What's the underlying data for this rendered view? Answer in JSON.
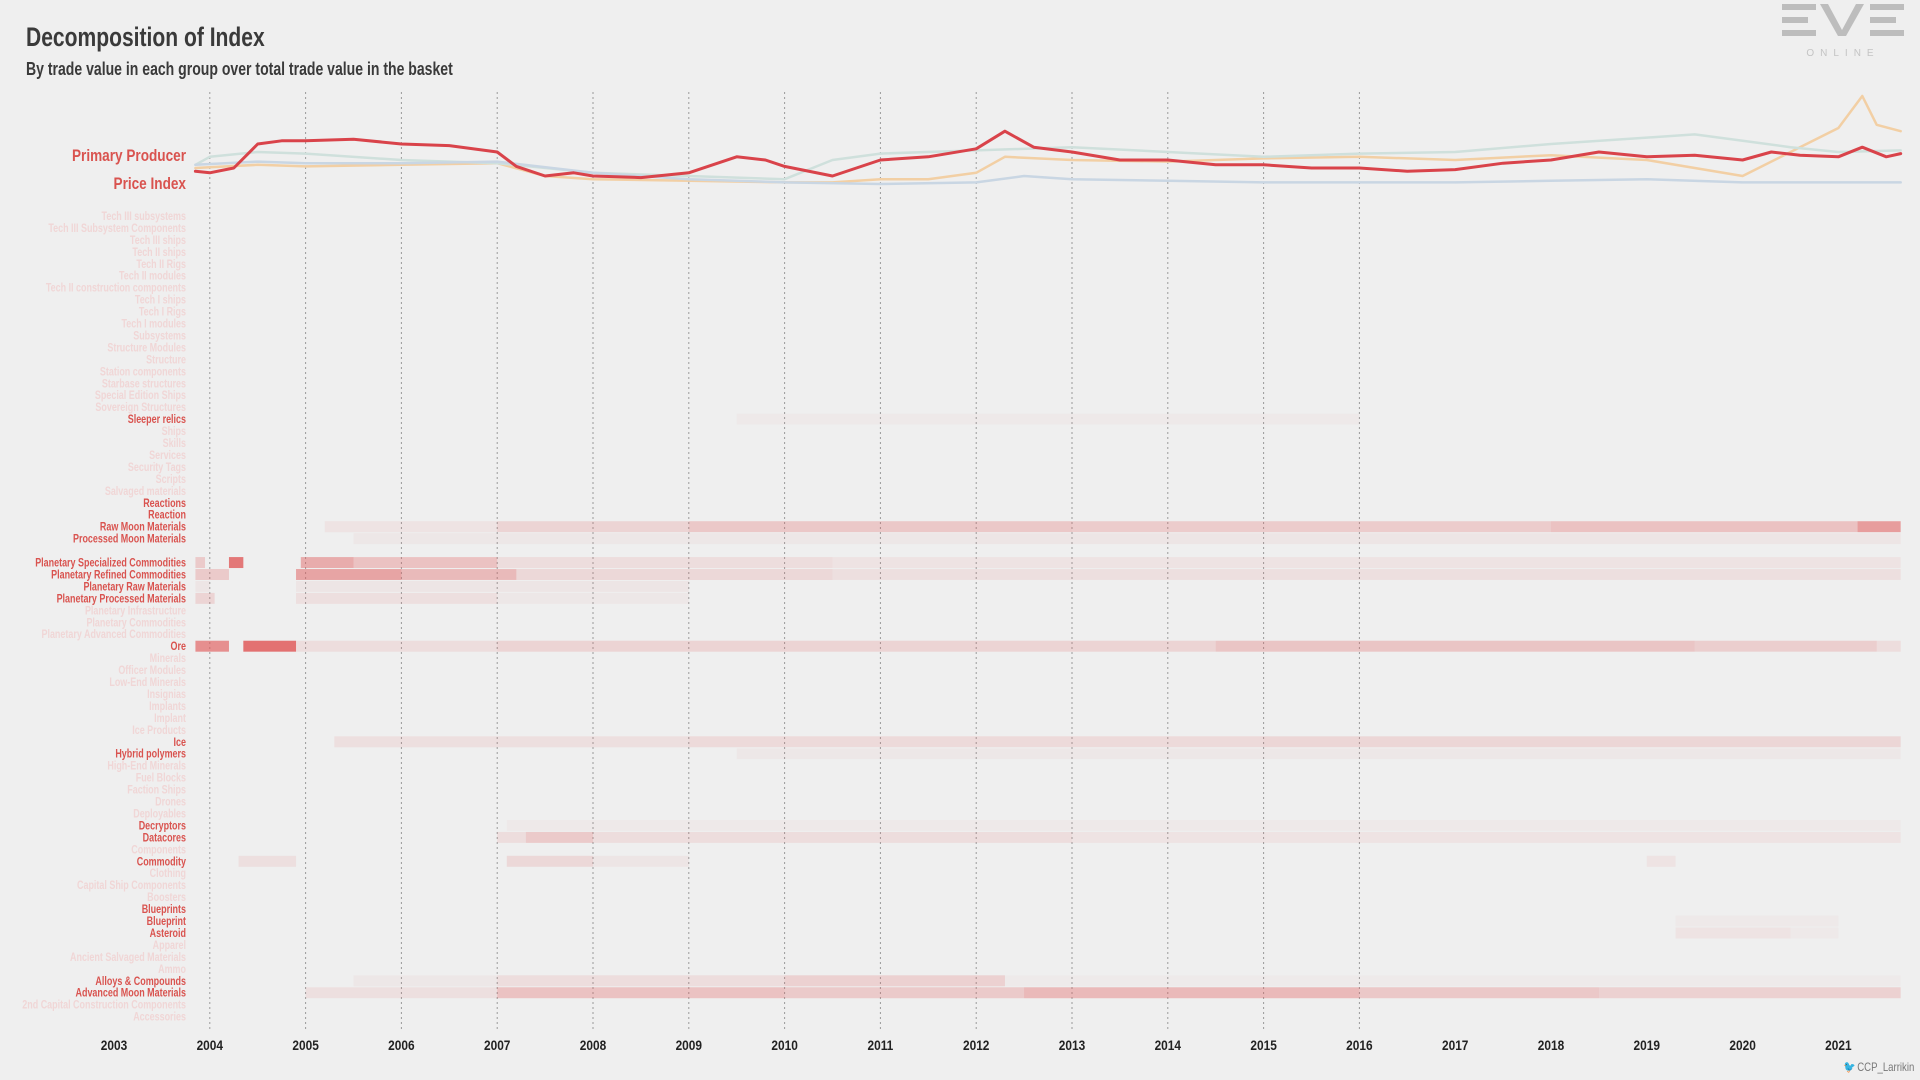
{
  "header": {
    "title": "Decomposition of Index",
    "subtitle": "By trade value in each group over total trade value in the basket"
  },
  "logo": {
    "name": "EVE",
    "tagline": "ONLINE"
  },
  "credit": {
    "icon": "twitter-bird-icon",
    "handle": "CCP_Larrikin"
  },
  "colors": {
    "background": "#efefef",
    "highlight": "#d9534f",
    "muted_label": "#f0d6d6",
    "heat": "#e05a5a",
    "line_primary": "#d9434a",
    "line_gold": "#f2cfa4",
    "line_teal": "#cfe0dc",
    "line_blue": "#c9d6e3"
  },
  "chart_data": [
    {
      "type": "line",
      "title": "",
      "ylabel": [
        "Primary Producer",
        "Price Index"
      ],
      "x_axis": "years",
      "x_ticks": [
        "2003",
        "2004",
        "2005",
        "2006",
        "2007",
        "2008",
        "2009",
        "2010",
        "2011",
        "2012",
        "2013",
        "2014",
        "2015",
        "2016",
        "2017",
        "2018",
        "2019",
        "2020",
        "2021"
      ],
      "grid": "dotted vertical at each year",
      "series": [
        {
          "name": "Primary Producer",
          "color": "#d9434a",
          "x": [
            2003.85,
            2004.0,
            2004.25,
            2004.5,
            2004.75,
            2005.0,
            2005.5,
            2006.0,
            2006.5,
            2007.0,
            2007.2,
            2007.5,
            2007.8,
            2008.0,
            2008.5,
            2009.0,
            2009.5,
            2009.8,
            2010.0,
            2010.5,
            2011.0,
            2011.5,
            2012.0,
            2012.3,
            2012.6,
            2013.0,
            2013.5,
            2014.0,
            2014.5,
            2015.0,
            2015.5,
            2016.0,
            2016.5,
            2017.0,
            2017.5,
            2018.0,
            2018.5,
            2019.0,
            2019.5,
            2020.0,
            2020.3,
            2020.6,
            2021.0,
            2021.25,
            2021.5,
            2021.65
          ],
          "values": [
            0.93,
            0.92,
            0.95,
            1.1,
            1.12,
            1.12,
            1.13,
            1.1,
            1.09,
            1.05,
            0.96,
            0.9,
            0.92,
            0.9,
            0.89,
            0.92,
            1.02,
            1.0,
            0.96,
            0.9,
            1.0,
            1.02,
            1.07,
            1.18,
            1.08,
            1.05,
            1.0,
            1.0,
            0.97,
            0.97,
            0.95,
            0.95,
            0.93,
            0.94,
            0.98,
            1.0,
            1.05,
            1.02,
            1.03,
            1.0,
            1.05,
            1.03,
            1.02,
            1.08,
            1.02,
            1.04
          ]
        },
        {
          "name": "",
          "color": "#f2cfa4",
          "x": [
            2003.85,
            2004.5,
            2005.0,
            2006.0,
            2007.0,
            2007.5,
            2008.0,
            2009.0,
            2010.0,
            2010.5,
            2011.0,
            2011.5,
            2012.0,
            2012.3,
            2013.0,
            2014.0,
            2015.0,
            2016.0,
            2017.0,
            2018.0,
            2019.0,
            2020.0,
            2020.5,
            2021.0,
            2021.25,
            2021.4,
            2021.65
          ],
          "values": [
            0.95,
            0.97,
            0.96,
            0.97,
            0.98,
            0.9,
            0.88,
            0.87,
            0.86,
            0.86,
            0.88,
            0.88,
            0.92,
            1.02,
            1.0,
            0.99,
            1.01,
            1.02,
            1.0,
            1.03,
            1.0,
            0.9,
            1.05,
            1.2,
            1.4,
            1.22,
            1.18
          ]
        },
        {
          "name": "",
          "color": "#cfe0dc",
          "x": [
            2003.85,
            2004.0,
            2004.5,
            2005.0,
            2006.0,
            2007.0,
            2008.0,
            2009.0,
            2010.0,
            2010.5,
            2011.0,
            2012.0,
            2013.0,
            2014.0,
            2015.0,
            2016.0,
            2017.0,
            2018.0,
            2019.0,
            2019.5,
            2020.0,
            2020.5,
            2021.0,
            2021.65
          ],
          "values": [
            0.97,
            1.02,
            1.05,
            1.04,
            1.0,
            0.98,
            0.92,
            0.9,
            0.88,
            1.0,
            1.04,
            1.06,
            1.08,
            1.05,
            1.02,
            1.04,
            1.05,
            1.1,
            1.14,
            1.16,
            1.12,
            1.08,
            1.05,
            1.06
          ]
        },
        {
          "name": "",
          "color": "#c9d6e3",
          "x": [
            2003.85,
            2004.5,
            2005.0,
            2006.0,
            2007.0,
            2008.0,
            2009.0,
            2010.0,
            2011.0,
            2012.0,
            2012.5,
            2013.0,
            2014.0,
            2015.0,
            2016.0,
            2017.0,
            2018.0,
            2019.0,
            2020.0,
            2021.0,
            2021.65
          ],
          "values": [
            0.97,
            0.99,
            0.98,
            0.98,
            0.99,
            0.92,
            0.88,
            0.86,
            0.85,
            0.86,
            0.9,
            0.88,
            0.87,
            0.86,
            0.86,
            0.86,
            0.87,
            0.88,
            0.86,
            0.86,
            0.86
          ]
        }
      ]
    },
    {
      "type": "heatmap",
      "title": "",
      "x_axis": "years",
      "x_ticks": [
        "2003",
        "2004",
        "2005",
        "2006",
        "2007",
        "2008",
        "2009",
        "2010",
        "2011",
        "2012",
        "2013",
        "2014",
        "2015",
        "2016",
        "2017",
        "2018",
        "2019",
        "2020",
        "2021"
      ],
      "rows": [
        {
          "label": "Tech III subsystems",
          "active": false
        },
        {
          "label": "Tech III Subsystem Components",
          "active": false
        },
        {
          "label": "Tech III ships",
          "active": false
        },
        {
          "label": "Tech II ships",
          "active": false
        },
        {
          "label": "Tech II Rigs",
          "active": false
        },
        {
          "label": "Tech II modules",
          "active": false
        },
        {
          "label": "Tech II construction components",
          "active": false
        },
        {
          "label": "Tech I ships",
          "active": false
        },
        {
          "label": "Tech I Rigs",
          "active": false
        },
        {
          "label": "Tech I modules",
          "active": false
        },
        {
          "label": "Subsystems",
          "active": false
        },
        {
          "label": "Structure Modules",
          "active": false
        },
        {
          "label": "Structure",
          "active": false
        },
        {
          "label": "Station components",
          "active": false
        },
        {
          "label": "Starbase structures",
          "active": false
        },
        {
          "label": "Special Edition Ships",
          "active": false
        },
        {
          "label": "Sovereign Structures",
          "active": false
        },
        {
          "label": "Sleeper relics",
          "active": true,
          "share": [
            [
              2009.5,
              2016,
              0.04
            ]
          ]
        },
        {
          "label": "Ships",
          "active": false
        },
        {
          "label": "Skills",
          "active": false
        },
        {
          "label": "Services",
          "active": false
        },
        {
          "label": "Security Tags",
          "active": false
        },
        {
          "label": "Scripts",
          "active": false
        },
        {
          "label": "Salvaged materials",
          "active": false
        },
        {
          "label": "Reactions",
          "active": true,
          "share": []
        },
        {
          "label": "Reaction",
          "active": true,
          "share": []
        },
        {
          "label": "Raw Moon Materials",
          "active": true,
          "share": [
            [
              2005.2,
              2007,
              0.08
            ],
            [
              2007,
              2009,
              0.18
            ],
            [
              2009,
              2013,
              0.26
            ],
            [
              2013,
              2018,
              0.24
            ],
            [
              2018,
              2021.2,
              0.3
            ],
            [
              2021.2,
              2021.65,
              0.55
            ]
          ]
        },
        {
          "label": "Processed Moon Materials",
          "active": true,
          "share": [
            [
              2005.5,
              2012,
              0.05
            ],
            [
              2012,
              2021.65,
              0.06
            ]
          ]
        },
        {
          "label": "",
          "active": false
        },
        {
          "label": "Planetary Specialized Commodities",
          "active": true,
          "share": [
            [
              2003.85,
              2003.95,
              0.25
            ],
            [
              2004.2,
              2004.35,
              0.8
            ],
            [
              2004.95,
              2005.5,
              0.45
            ],
            [
              2005.5,
              2007,
              0.3
            ],
            [
              2007,
              2010.5,
              0.12
            ],
            [
              2010.5,
              2021.65,
              0.08
            ]
          ]
        },
        {
          "label": "Planetary Refined Commodities",
          "active": true,
          "share": [
            [
              2003.85,
              2004.2,
              0.25
            ],
            [
              2004.9,
              2006,
              0.5
            ],
            [
              2006,
              2007.2,
              0.35
            ],
            [
              2007.2,
              2010.5,
              0.15
            ],
            [
              2010.5,
              2021.65,
              0.1
            ]
          ]
        },
        {
          "label": "Planetary Raw Materials",
          "active": true,
          "share": [
            [
              2003.85,
              2004.0,
              0.06
            ],
            [
              2004.9,
              2009,
              0.06
            ]
          ]
        },
        {
          "label": "Planetary Processed Materials",
          "active": true,
          "share": [
            [
              2003.85,
              2004.05,
              0.18
            ],
            [
              2004.9,
              2007,
              0.1
            ],
            [
              2007,
              2009,
              0.05
            ]
          ]
        },
        {
          "label": "Planetary Infrastructure",
          "active": false
        },
        {
          "label": "Planetary Commodities",
          "active": false
        },
        {
          "label": "Planetary Advanced Commodities",
          "active": false
        },
        {
          "label": "Ore",
          "active": true,
          "share": [
            [
              2003.85,
              2004.2,
              0.65
            ],
            [
              2004.35,
              2004.9,
              0.85
            ],
            [
              2004.9,
              2007,
              0.12
            ],
            [
              2007,
              2014.5,
              0.18
            ],
            [
              2014.5,
              2019.5,
              0.28
            ],
            [
              2019.5,
              2021.4,
              0.22
            ],
            [
              2021.4,
              2021.65,
              0.12
            ]
          ]
        },
        {
          "label": "Minerals",
          "active": false
        },
        {
          "label": "Officer Modules",
          "active": false
        },
        {
          "label": "Low-End Minerals",
          "active": false
        },
        {
          "label": "Insignias",
          "active": false
        },
        {
          "label": "Implants",
          "active": false
        },
        {
          "label": "Implant",
          "active": false
        },
        {
          "label": "Ice Products",
          "active": false
        },
        {
          "label": "Ice",
          "active": true,
          "share": [
            [
              2005.3,
              2009,
              0.1
            ],
            [
              2009,
              2015,
              0.14
            ],
            [
              2015,
              2021.65,
              0.16
            ]
          ]
        },
        {
          "label": "Hybrid polymers",
          "active": true,
          "share": [
            [
              2009.5,
              2021.65,
              0.05
            ]
          ]
        },
        {
          "label": "High-End Minerals",
          "active": false
        },
        {
          "label": "Fuel Blocks",
          "active": false
        },
        {
          "label": "Faction Ships",
          "active": false
        },
        {
          "label": "Drones",
          "active": false
        },
        {
          "label": "Deployables",
          "active": false
        },
        {
          "label": "Decryptors",
          "active": true,
          "share": [
            [
              2007.1,
              2021.65,
              0.04
            ]
          ]
        },
        {
          "label": "Datacores",
          "active": true,
          "share": [
            [
              2007.0,
              2007.3,
              0.12
            ],
            [
              2007.3,
              2008,
              0.25
            ],
            [
              2008,
              2013,
              0.12
            ],
            [
              2013,
              2021.65,
              0.08
            ]
          ]
        },
        {
          "label": "Components",
          "active": false
        },
        {
          "label": "Commodity",
          "active": true,
          "share": [
            [
              2004.3,
              2004.9,
              0.1
            ],
            [
              2007.1,
              2008,
              0.15
            ],
            [
              2008,
              2009,
              0.06
            ],
            [
              2019.0,
              2019.3,
              0.08
            ]
          ]
        },
        {
          "label": "Clothing",
          "active": false
        },
        {
          "label": "Capital Ship Components",
          "active": false
        },
        {
          "label": "Boosters",
          "active": false
        },
        {
          "label": "Blueprints",
          "active": true,
          "share": []
        },
        {
          "label": "Blueprint",
          "active": true,
          "share": [
            [
              2019.3,
              2021.0,
              0.04
            ]
          ]
        },
        {
          "label": "Asteroid",
          "active": true,
          "share": [
            [
              2019.3,
              2020.5,
              0.08
            ],
            [
              2020.5,
              2021.0,
              0.04
            ]
          ]
        },
        {
          "label": "Apparel",
          "active": false
        },
        {
          "label": "Ancient Salvaged Materials",
          "active": false
        },
        {
          "label": "Ammo",
          "active": false
        },
        {
          "label": "Alloys & Compounds",
          "active": true,
          "share": [
            [
              2005.5,
              2007,
              0.05
            ],
            [
              2007,
              2010,
              0.12
            ],
            [
              2010,
              2012.3,
              0.2
            ],
            [
              2012.3,
              2021.65,
              0.03
            ]
          ]
        },
        {
          "label": "Advanced Moon Materials",
          "active": true,
          "share": [
            [
              2005,
              2007,
              0.1
            ],
            [
              2007,
              2010,
              0.3
            ],
            [
              2010,
              2012.5,
              0.25
            ],
            [
              2012.5,
              2016,
              0.36
            ],
            [
              2016,
              2018.5,
              0.26
            ],
            [
              2018.5,
              2021.65,
              0.2
            ]
          ]
        },
        {
          "label": "2nd Capital Construction Components",
          "active": false
        },
        {
          "label": "Accessories",
          "active": false
        }
      ]
    }
  ]
}
